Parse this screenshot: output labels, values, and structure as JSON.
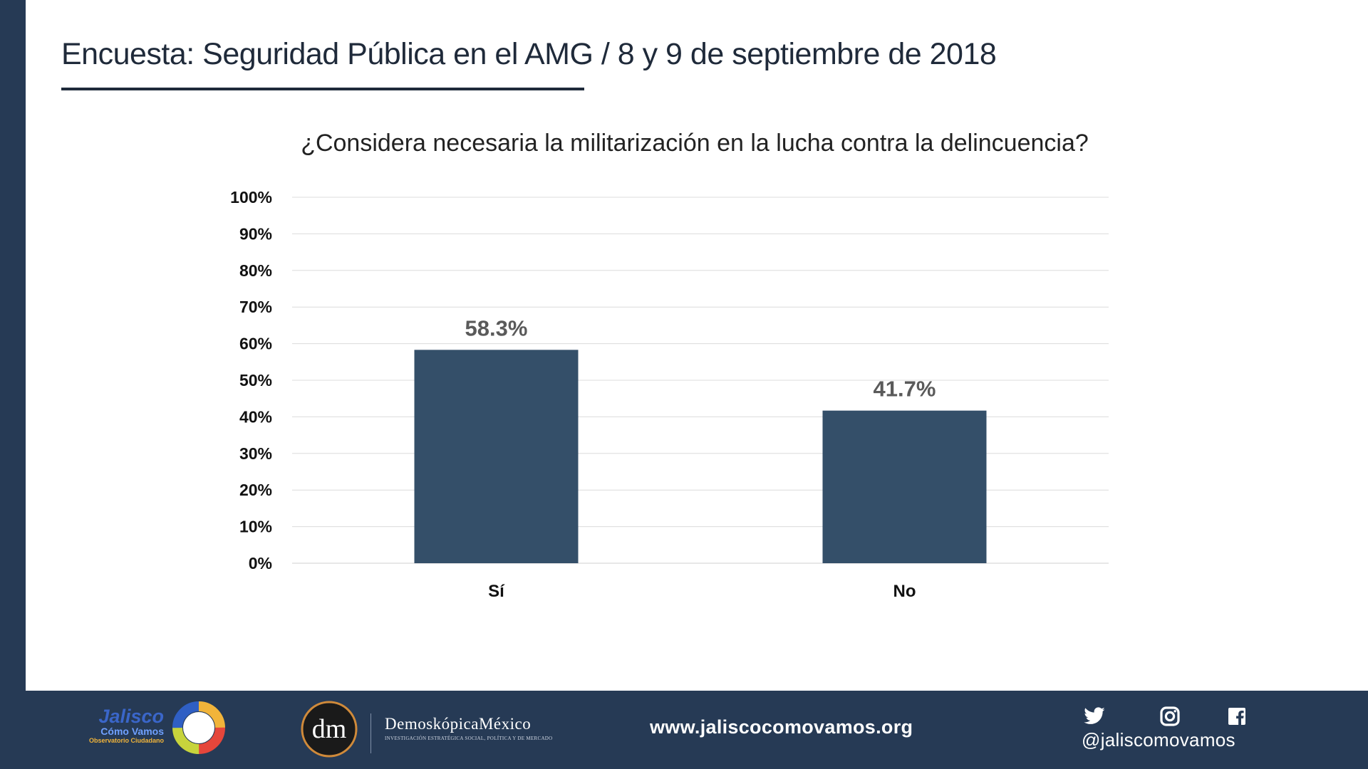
{
  "header": {
    "title": "Encuesta: Seguridad Pública en el AMG / 8 y 9 de septiembre de 2018"
  },
  "chart_data": {
    "type": "bar",
    "title": "¿Considera necesaria la militarización en la lucha contra la delincuencia?",
    "categories": [
      "Sí",
      "No"
    ],
    "values": [
      58.3,
      41.7
    ],
    "value_labels": [
      "58.3%",
      "41.7%"
    ],
    "ylim": [
      0,
      100
    ],
    "yticks": [
      "0%",
      "10%",
      "20%",
      "30%",
      "40%",
      "50%",
      "60%",
      "70%",
      "80%",
      "90%",
      "100%"
    ],
    "grid": true,
    "bar_color": "#344f69",
    "xlabel": "",
    "ylabel": ""
  },
  "footer": {
    "jalisco_logo": {
      "main": "Jalisco",
      "sub": "Cómo Vamos",
      "obs": "Observatorio Ciudadano"
    },
    "demoskopica": {
      "mark": "dm",
      "name": "DemoskópicaMéxico",
      "tagline": "INVESTIGACIÓN ESTRATÉGICA SOCIAL, POLÍTICA Y DE MERCADO"
    },
    "website": "www.jaliscocomovamos.org",
    "social_icons": [
      "twitter-icon",
      "instagram-icon",
      "facebook-icon"
    ],
    "handle": "@jaliscomovamos"
  },
  "colors": {
    "sidebar": "#263a55",
    "footer": "#263a55",
    "bar": "#344f69"
  }
}
